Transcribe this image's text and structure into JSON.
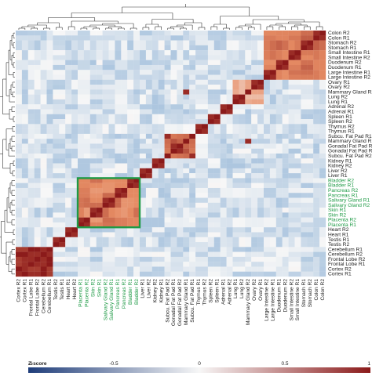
{
  "chart_data": {
    "type": "heatmap",
    "title": "",
    "colorbar": {
      "title": "Z-score",
      "ticks": [
        "-1",
        "-0.5",
        "0",
        "0.5",
        "1"
      ],
      "range": [
        -1,
        1
      ],
      "colors": {
        "low": "#1f3d7a",
        "mid": "#f7f7f7",
        "high": "#8b1a1a"
      }
    },
    "highlight_color": "#1e9a45",
    "dendrograms": {
      "top": true,
      "left": true
    },
    "rows": [
      "Colon R2",
      "Colon R1",
      "Stomach R2",
      "Stomach R1",
      "Small Intestine R1",
      "Small Intestine R2",
      "Duodenum R2",
      "Duodenum R1",
      "Large Intestine R1",
      "Large Intestine R2",
      "Ovary R1",
      "Ovary R2",
      "Mammary Gland R2",
      "Lung R2",
      "Lung R1",
      "Adrenal R2",
      "Adrenal R1",
      "Spleen R1",
      "Spleen R2",
      "Thymus R2",
      "Thymus R1",
      "Subcu. Fat Pad R1",
      "Mammary Gland R1",
      "Gonadal Fat Pad R2",
      "Gonadal Fat Pad R1",
      "Subcu. Fat Pad R2",
      "Kidney R1",
      "Kidney R2",
      "Liver R2",
      "Liver R1",
      "Bladder R2",
      "Bladder R1",
      "Pancreas R2",
      "Pancreas R1",
      "Salivary Gland R1",
      "Salivary Gland R2",
      "Skin R1",
      "Skin R2",
      "Placenta R2",
      "Placenta R1",
      "Heart R2",
      "Heart R1",
      "Testis R1",
      "Testis R2",
      "Cerebellum R1",
      "Cerebellum R2",
      "Frontal Lobe R2",
      "Frontal Lobe R1",
      "Cortex R2",
      "Cortex R1"
    ],
    "columns": [
      "Cortex R2",
      "Cortex R1",
      "Frontal Lobe R1",
      "Frontal Lobe R2",
      "Cerebellum R2",
      "Cerebellum R1",
      "Testis R2",
      "Testis R1",
      "Heart R1",
      "Heart R2",
      "Placenta R1",
      "Placenta R2",
      "Skin R2",
      "Skin R1",
      "Salivary Gland R2",
      "Salivary Gland R1",
      "Pancreas R1",
      "Pancreas R2",
      "Bladder R1",
      "Bladder R2",
      "Liver R1",
      "Liver R2",
      "Kidney R2",
      "Kidney R1",
      "Subcu. Fat Pad R2",
      "Gonadal Fat Pad R1",
      "Gonadal Fat Pad R2",
      "Mammary Gland R1",
      "Subcu. Fat Pad R1",
      "Thymus R1",
      "Thymus R2",
      "Spleen R2",
      "Spleen R1",
      "Adrenal R1",
      "Adrenal R2",
      "Lung R1",
      "Lung R2",
      "Mammary Gland R2",
      "Ovary R2",
      "Ovary R1",
      "Large Intestine R2",
      "Large Intestine R1",
      "Duodenum R1",
      "Duodenum R2",
      "Small Intestine R2",
      "Small Intestine R1",
      "Stomach R1",
      "Stomach R2",
      "Colon R1",
      "Colon R2"
    ],
    "highlighted_labels": [
      "Bladder R2",
      "Bladder R1",
      "Pancreas R2",
      "Pancreas R1",
      "Salivary Gland R1",
      "Salivary Gland R2",
      "Skin R1",
      "Skin R2",
      "Placenta R2",
      "Placenta R1"
    ],
    "highlighted_block": [
      "Placenta R1",
      "Bladder R2"
    ],
    "clusters": [
      {
        "members": [
          "Cortex R2",
          "Cortex R1",
          "Frontal Lobe R1",
          "Frontal Lobe R2",
          "Cerebellum R2",
          "Cerebellum R1"
        ],
        "strength": 0.95
      },
      {
        "members": [
          "Testis R2",
          "Testis R1"
        ],
        "strength": 0.9
      },
      {
        "members": [
          "Heart R1",
          "Heart R2"
        ],
        "strength": 0.9
      },
      {
        "members": [
          "Placenta R1",
          "Placenta R2",
          "Skin R2",
          "Skin R1",
          "Salivary Gland R2",
          "Salivary Gland R1",
          "Pancreas R1",
          "Pancreas R2",
          "Bladder R1",
          "Bladder R2"
        ],
        "strength": 0.55
      },
      {
        "members": [
          "Liver R1",
          "Liver R2"
        ],
        "strength": 0.9
      },
      {
        "members": [
          "Kidney R2",
          "Kidney R1"
        ],
        "strength": 0.9
      },
      {
        "members": [
          "Subcu. Fat Pad R2",
          "Gonadal Fat Pad R1",
          "Gonadal Fat Pad R2",
          "Mammary Gland R1",
          "Subcu. Fat Pad R1"
        ],
        "strength": 0.65
      },
      {
        "members": [
          "Thymus R1",
          "Thymus R2"
        ],
        "strength": 0.85
      },
      {
        "members": [
          "Spleen R2",
          "Spleen R1"
        ],
        "strength": 0.85
      },
      {
        "members": [
          "Adrenal R1",
          "Adrenal R2"
        ],
        "strength": 0.85
      },
      {
        "members": [
          "Lung R1",
          "Lung R2",
          "Mammary Gland R2",
          "Ovary R2",
          "Ovary R1"
        ],
        "strength": 0.35
      },
      {
        "members": [
          "Large Intestine R2",
          "Large Intestine R1",
          "Duodenum R1",
          "Duodenum R2",
          "Small Intestine R2",
          "Small Intestine R1",
          "Stomach R1",
          "Stomach R2",
          "Colon R1",
          "Colon R2"
        ],
        "strength": 0.6
      }
    ]
  }
}
